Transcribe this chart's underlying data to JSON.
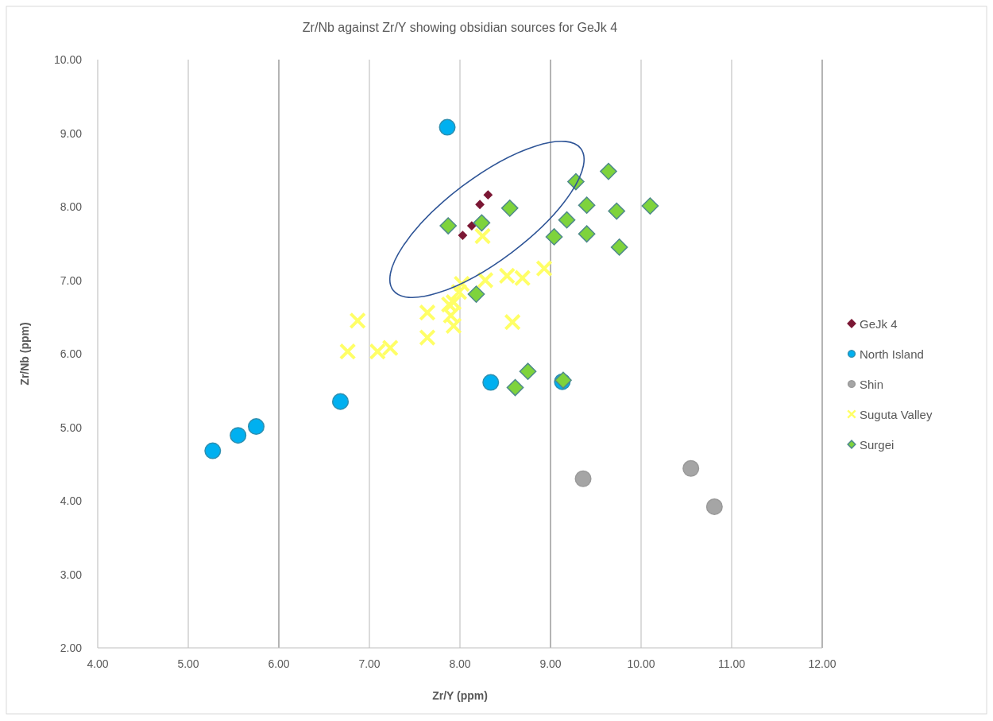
{
  "chart_data": {
    "type": "scatter",
    "title": "Zr/Nb against Zr/Y showing obsidian sources for GeJk 4",
    "xlabel": "Zr/Y (ppm)",
    "ylabel": "Zr/Nb (ppm)",
    "xlim": [
      4,
      12
    ],
    "ylim": [
      2,
      10
    ],
    "xticks": [
      {
        "value": 4,
        "label": "4.00"
      },
      {
        "value": 5,
        "label": "5.00"
      },
      {
        "value": 6,
        "label": "6.00"
      },
      {
        "value": 7,
        "label": "7.00"
      },
      {
        "value": 8,
        "label": "8.00"
      },
      {
        "value": 9,
        "label": "9.00"
      },
      {
        "value": 10,
        "label": "10.00"
      },
      {
        "value": 11,
        "label": "11.00"
      },
      {
        "value": 12,
        "label": "12.00"
      }
    ],
    "yticks": [
      {
        "value": 2,
        "label": "2.00"
      },
      {
        "value": 3,
        "label": "3.00"
      },
      {
        "value": 4,
        "label": "4.00"
      },
      {
        "value": 5,
        "label": "5.00"
      },
      {
        "value": 6,
        "label": "6.00"
      },
      {
        "value": 7,
        "label": "7.00"
      },
      {
        "value": 8,
        "label": "8.00"
      },
      {
        "value": 9,
        "label": "9.00"
      },
      {
        "value": 10,
        "label": "10.00"
      }
    ],
    "grid": "x",
    "legend": "right",
    "series": [
      {
        "name": "GeJk 4",
        "color": "#7b1734",
        "marker": "diamond",
        "x": [
          8.03,
          8.13,
          8.22,
          8.31
        ],
        "values": [
          7.61,
          7.74,
          8.03,
          8.16
        ]
      },
      {
        "name": "North Island",
        "color": "#00b0f0",
        "marker": "circle",
        "x": [
          7.86,
          5.27,
          5.55,
          5.75,
          6.68,
          8.34,
          9.13
        ],
        "values": [
          9.08,
          4.68,
          4.89,
          5.01,
          5.35,
          5.61,
          5.62
        ]
      },
      {
        "name": "Shin",
        "color": "#a5a5a5",
        "marker": "circle",
        "x": [
          9.36,
          10.55,
          10.81
        ],
        "values": [
          4.3,
          4.44,
          3.92
        ]
      },
      {
        "name": "Suguta Valley",
        "color": "#ffff66",
        "marker": "cross",
        "x": [
          6.87,
          6.76,
          7.09,
          7.23,
          7.64,
          7.64,
          7.93,
          7.93,
          7.99,
          8.02,
          8.28,
          8.52,
          8.69,
          8.93,
          8.58,
          8.25,
          7.88,
          7.9
        ],
        "values": [
          6.45,
          6.03,
          6.03,
          6.08,
          6.56,
          6.22,
          6.38,
          6.7,
          6.84,
          6.95,
          7.0,
          7.06,
          7.03,
          7.16,
          6.43,
          7.6,
          6.67,
          6.52
        ]
      },
      {
        "name": "Surgei",
        "color": "#7ed33c",
        "marker": "diamond",
        "x": [
          7.87,
          8.24,
          8.55,
          8.18,
          9.28,
          9.64,
          9.4,
          9.73,
          10.1,
          9.18,
          9.04,
          9.4,
          9.76,
          8.61,
          8.75,
          9.14
        ],
        "values": [
          7.74,
          7.78,
          7.98,
          6.81,
          8.34,
          8.48,
          8.02,
          7.94,
          8.01,
          7.82,
          7.59,
          7.63,
          7.45,
          5.54,
          5.76,
          5.64
        ]
      }
    ]
  }
}
